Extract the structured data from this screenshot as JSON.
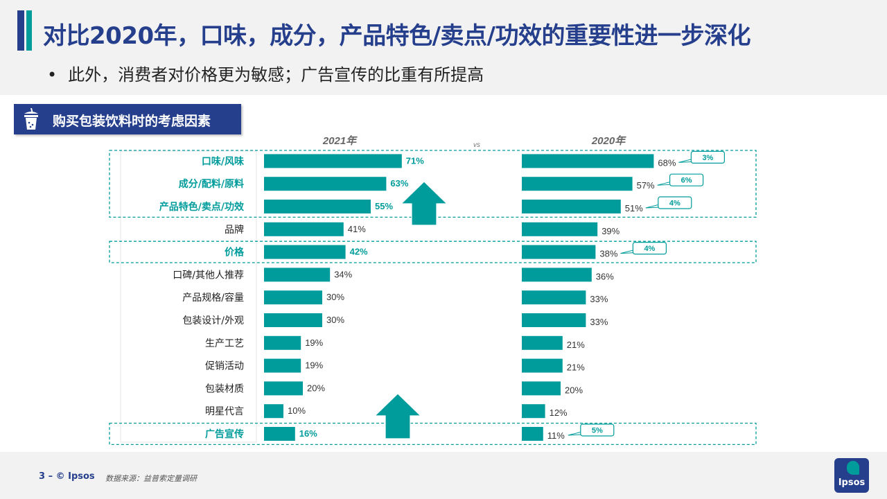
{
  "header": {
    "title": "对比2020年，口味，成分，产品特色/卖点/功效的重要性进一步深化",
    "bullet": "•",
    "subtitle": "此外，消费者对价格更为敏感；广告宣传的比重有所提高"
  },
  "section": {
    "label": "购买包装饮料时的考虑因素",
    "icon": "drink-cup-icon"
  },
  "colors": {
    "navy": "#253f8c",
    "teal": "#009c9c",
    "highlight_text": "#009c9c"
  },
  "chart_data": {
    "type": "bar",
    "orientation": "horizontal",
    "title": "",
    "vs_label": "vs",
    "categories": [
      "口味/风味",
      "成分/配料/原料",
      "产品特色/卖点/功效",
      "品牌",
      "价格",
      "口碑/其他人推荐",
      "产品规格/容量",
      "包装设计/外观",
      "生产工艺",
      "促销活动",
      "包装材质",
      "明星代言",
      "广告宣传"
    ],
    "highlighted": [
      true,
      true,
      true,
      false,
      true,
      false,
      false,
      false,
      false,
      false,
      false,
      false,
      true
    ],
    "series": [
      {
        "name": "2021年",
        "values": [
          71,
          63,
          55,
          41,
          42,
          34,
          30,
          30,
          19,
          19,
          20,
          10,
          16
        ],
        "labels": [
          "71%",
          "63%",
          "55%",
          "41%",
          "42%",
          "34%",
          "30%",
          "30%",
          "19%",
          "19%",
          "20%",
          "10%",
          "16%"
        ]
      },
      {
        "name": "2020年",
        "values": [
          68,
          57,
          51,
          39,
          38,
          36,
          33,
          33,
          21,
          21,
          20,
          12,
          11
        ],
        "labels": [
          "68%",
          "57%",
          "51%",
          "39%",
          "38%",
          "36%",
          "33%",
          "33%",
          "21%",
          "21%",
          "20%",
          "12%",
          "11%"
        ]
      }
    ],
    "change_callouts": [
      {
        "category": "口味/风味",
        "label": "3%"
      },
      {
        "category": "成分/配料/原料",
        "label": "6%"
      },
      {
        "category": "产品特色/卖点/功效",
        "label": "4%"
      },
      {
        "category": "价格",
        "label": "4%"
      },
      {
        "category": "广告宣传",
        "label": "5%"
      }
    ],
    "arrows": [
      "up",
      "up"
    ],
    "xlim": [
      0,
      100
    ]
  },
  "footer": {
    "page": "3 –  © Ipsos",
    "source": "数据来源：益普索定量调研",
    "logo_text": "Ipsos"
  }
}
